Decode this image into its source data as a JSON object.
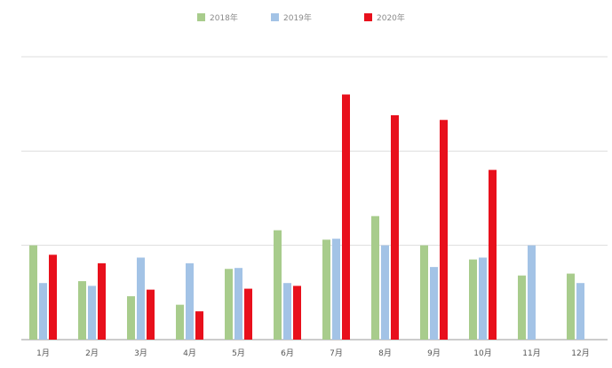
{
  "chart_data": {
    "type": "bar",
    "categories": [
      "1月",
      "2月",
      "3月",
      "4月",
      "5月",
      "6月",
      "7月",
      "8月",
      "9月",
      "10月",
      "11月",
      "12月"
    ],
    "series": [
      {
        "name": "2018年",
        "color": "#a8cc8c",
        "values": [
          1.0,
          0.62,
          0.46,
          0.37,
          0.75,
          1.16,
          1.06,
          1.31,
          1.0,
          0.85,
          0.68,
          0.7
        ]
      },
      {
        "name": "2019年",
        "color": "#a3c3e6",
        "values": [
          0.6,
          0.57,
          0.87,
          0.81,
          0.76,
          0.6,
          1.07,
          1.0,
          0.77,
          0.87,
          1.0,
          0.6
        ]
      },
      {
        "name": "2020年",
        "color": "#e8101c",
        "values": [
          0.9,
          0.81,
          0.53,
          0.3,
          0.54,
          0.57,
          2.6,
          2.38,
          2.33,
          1.8,
          null,
          null
        ]
      }
    ],
    "ylim": [
      0,
      3
    ],
    "gridlines": [
      0,
      1,
      2,
      3
    ],
    "ytick_labels": "none",
    "legend_position": "top-center",
    "grid": true
  }
}
